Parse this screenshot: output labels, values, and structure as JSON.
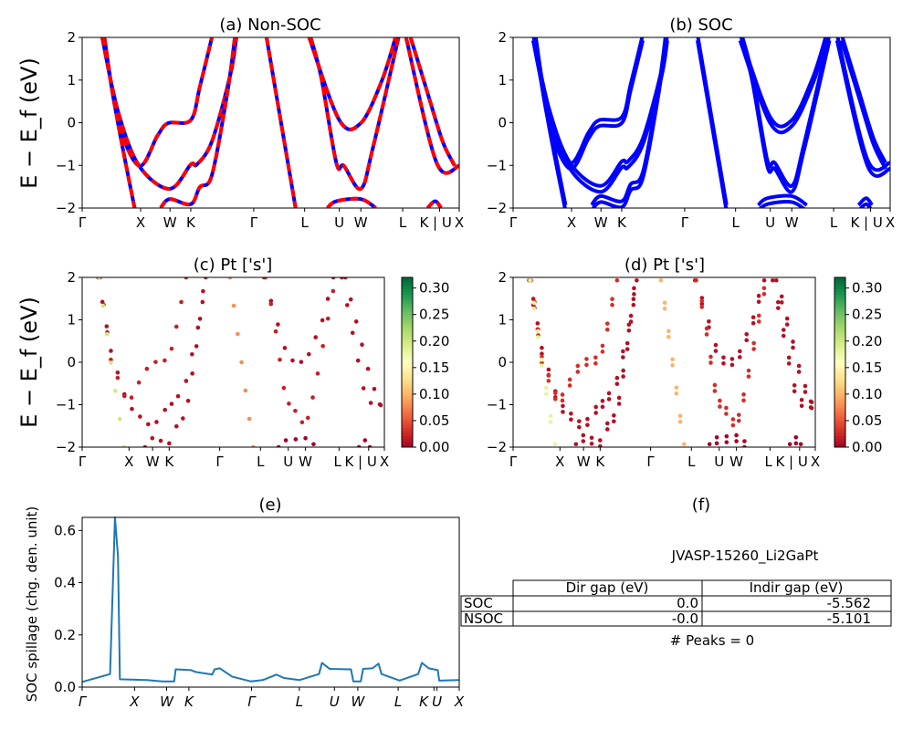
{
  "chart_data": [
    {
      "type": "line",
      "title": "(a) Non-SOC",
      "ylabel": "E − E_f (eV)",
      "ylim": [
        -2,
        2
      ],
      "yticks": [
        -2,
        -1,
        0,
        1,
        2
      ],
      "line_colors": [
        "#ff0000",
        "#0000ff"
      ],
      "line_style": "red dashed over blue",
      "kticks": {
        "positions": [
          0,
          0.155,
          0.233,
          0.288,
          0.455,
          0.59,
          0.682,
          0.739,
          0.85,
          0.948,
          1.0
        ],
        "labels": [
          "Γ",
          "X",
          "W",
          "K",
          "Γ",
          "L",
          "U",
          "W",
          "L",
          "K | U",
          "X"
        ]
      },
      "bands": [
        [
          [
            0.053,
            2
          ],
          [
            0.095,
            0.27
          ],
          [
            0.151,
            -1.01
          ],
          [
            0.232,
            -1.55
          ],
          [
            0.288,
            -0.98
          ],
          [
            0.304,
            -0.98
          ],
          [
            0.344,
            -0.44
          ],
          [
            0.393,
            1.13
          ],
          [
            0.409,
            2
          ]
        ],
        [
          [
            0.059,
            2
          ],
          [
            0.095,
            0.06
          ],
          [
            0.151,
            -1.01
          ],
          [
            0.2,
            -0.3
          ],
          [
            0.228,
            -0.01
          ],
          [
            0.288,
            0.06
          ],
          [
            0.312,
            0.84
          ],
          [
            0.344,
            2
          ]
        ],
        [
          [
            0.056,
            2
          ],
          [
            0.095,
            -0.01
          ],
          [
            0.139,
            -2
          ]
        ],
        [
          [
            0.208,
            -2
          ],
          [
            0.232,
            -1.79
          ],
          [
            0.288,
            -1.91
          ],
          [
            0.312,
            -1.51
          ],
          [
            0.344,
            -1.23
          ],
          [
            0.385,
            0.7
          ],
          [
            0.405,
            2
          ]
        ],
        [
          [
            0.489,
            2
          ],
          [
            0.566,
            -2
          ]
        ],
        [
          [
            0.602,
            2
          ],
          [
            0.682,
            0.06
          ],
          [
            0.739,
            -0.01
          ],
          [
            0.795,
            0.99
          ],
          [
            0.831,
            2
          ]
        ],
        [
          [
            0.606,
            2
          ],
          [
            0.634,
            1.06
          ],
          [
            0.674,
            -0.94
          ],
          [
            0.694,
            -1.01
          ],
          [
            0.739,
            -1.55
          ],
          [
            0.771,
            -0.59
          ],
          [
            0.839,
            2
          ]
        ],
        [
          [
            0.859,
            2
          ],
          [
            0.94,
            -0.94
          ],
          [
            1.0,
            -1.01
          ]
        ],
        [
          [
            0.871,
            2
          ],
          [
            0.916,
            0.7
          ],
          [
            0.956,
            -0.44
          ],
          [
            0.988,
            -1.01
          ]
        ],
        [
          [
            0.65,
            -2
          ],
          [
            0.674,
            -1.84
          ],
          [
            0.739,
            -1.79
          ],
          [
            0.779,
            -2
          ]
        ],
        [
          [
            0.916,
            -2
          ],
          [
            0.936,
            -1.84
          ],
          [
            0.952,
            -2
          ]
        ]
      ]
    },
    {
      "type": "line",
      "title": "(b) SOC",
      "ylim": [
        -2,
        2
      ],
      "line_color": "#0000ff"
    },
    {
      "type": "scatter",
      "title": "(c)  Pt ['s']",
      "ylabel": "E − E_f (eV)",
      "ylim": [
        -2,
        2
      ],
      "kticks_labels": [
        "Γ",
        "X",
        "W",
        "K",
        "Γ",
        "L",
        "U",
        "W",
        "L",
        "K | U",
        "X"
      ],
      "band_weights": [
        0.01,
        0.02,
        0.2,
        0.01,
        0.08,
        0.01,
        0.02,
        0.01,
        0.01,
        0.0,
        0.0
      ],
      "colorbar": {
        "colormap": "RdYlGn",
        "range": [
          0,
          0.32
        ],
        "ticks": [
          "0.00",
          "0.05",
          "0.10",
          "0.15",
          "0.20",
          "0.25",
          "0.30"
        ]
      }
    },
    {
      "type": "scatter",
      "title": "(d) Pt ['s']",
      "ylim": [
        -2,
        2
      ],
      "band_weights": [
        0.01,
        0.03,
        0.18,
        0.01,
        0.1,
        0.01,
        0.03,
        0.01,
        0.01,
        0.0,
        0.0
      ],
      "colorbar": {
        "colormap": "RdYlGn",
        "range": [
          0,
          0.32
        ],
        "ticks": [
          "0.00",
          "0.05",
          "0.10",
          "0.15",
          "0.20",
          "0.25",
          "0.30"
        ]
      }
    },
    {
      "type": "line",
      "title": "(e)",
      "ylabel": "SOC spillage (chg. den. unit)",
      "ylim": [
        0,
        0.65
      ],
      "yticks": [
        "0.0",
        "0.2",
        "0.4",
        "0.6"
      ],
      "line_color": "#1f77b4",
      "kticks": {
        "positions": [
          0,
          0.139,
          0.224,
          0.283,
          0.449,
          0.576,
          0.669,
          0.731,
          0.838,
          0.933,
          0.941,
          1.0
        ],
        "labels": [
          "Γ",
          "X",
          "W",
          "K",
          "Γ",
          "L",
          "U",
          "W",
          "L",
          "K",
          "U",
          "X"
        ]
      },
      "points": [
        [
          0,
          0.02
        ],
        [
          0.074,
          0.05
        ],
        [
          0.087,
          0.65
        ],
        [
          0.095,
          0.5
        ],
        [
          0.1,
          0.03
        ],
        [
          0.171,
          0.027
        ],
        [
          0.212,
          0.022
        ],
        [
          0.244,
          0.022
        ],
        [
          0.248,
          0.068
        ],
        [
          0.289,
          0.065
        ],
        [
          0.301,
          0.058
        ],
        [
          0.345,
          0.048
        ],
        [
          0.351,
          0.068
        ],
        [
          0.365,
          0.072
        ],
        [
          0.398,
          0.04
        ],
        [
          0.447,
          0.022
        ],
        [
          0.479,
          0.027
        ],
        [
          0.515,
          0.048
        ],
        [
          0.535,
          0.035
        ],
        [
          0.576,
          0.027
        ],
        [
          0.628,
          0.05
        ],
        [
          0.636,
          0.093
        ],
        [
          0.656,
          0.07
        ],
        [
          0.713,
          0.068
        ],
        [
          0.719,
          0.022
        ],
        [
          0.739,
          0.022
        ],
        [
          0.745,
          0.07
        ],
        [
          0.77,
          0.072
        ],
        [
          0.786,
          0.09
        ],
        [
          0.794,
          0.05
        ],
        [
          0.842,
          0.025
        ],
        [
          0.891,
          0.05
        ],
        [
          0.901,
          0.093
        ],
        [
          0.919,
          0.072
        ],
        [
          0.943,
          0.065
        ],
        [
          0.947,
          0.025
        ],
        [
          1.0,
          0.027
        ]
      ]
    },
    {
      "type": "table",
      "title": "(f)",
      "subtitle": "JVASP-15260_Li2GaPt",
      "columns": [
        "Dir gap (eV)",
        "Indir gap (eV)"
      ],
      "rows": [
        {
          "label": "SOC",
          "values": [
            "0.0",
            "-5.562"
          ]
        },
        {
          "label": "NSOC",
          "values": [
            "-0.0",
            "-5.101"
          ]
        }
      ],
      "footer": "# Peaks = 0"
    }
  ]
}
